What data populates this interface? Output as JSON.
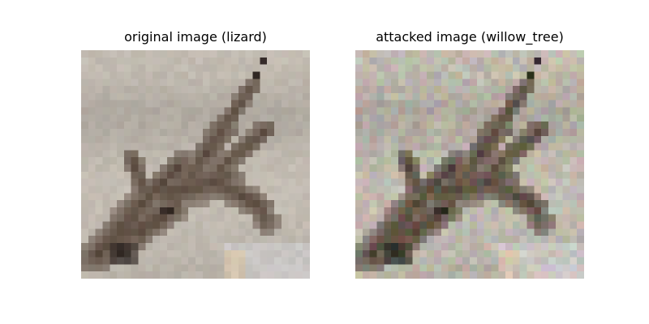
{
  "panels": [
    {
      "title": "original image (lizard)",
      "image_content": "lizard",
      "colors": {
        "background": "#c4bdb3",
        "subject": "#5b4b3f",
        "dark": "#1f1513"
      }
    },
    {
      "title": "attacked image (willow_tree)",
      "image_content": "lizard",
      "colors": {
        "background": "#c2bcb0",
        "subject": "#574a3c",
        "dark": "#1d1511"
      }
    }
  ]
}
